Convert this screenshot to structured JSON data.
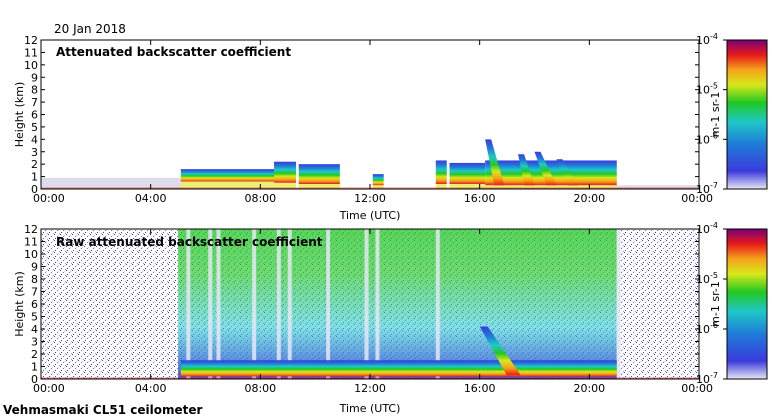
{
  "date": "20 Jan 2018",
  "site": "Vehmasmaki CL51 ceilometer",
  "colors": {
    "colormap": [
      "#e6e6f5",
      "#3b3bdc",
      "#1f7bd8",
      "#1fc8c8",
      "#22c822",
      "#d8e81a",
      "#f5a21a",
      "#e81a1a",
      "#780078"
    ]
  },
  "chart_data": [
    {
      "type": "heatmap",
      "title": "Attenuated backscatter coefficient",
      "xlabel": "Time (UTC)",
      "ylabel": "Height (km)",
      "x_ticks": [
        "00:00",
        "04:00",
        "08:00",
        "12:00",
        "16:00",
        "20:00",
        "00:00"
      ],
      "y_ticks": [
        "0",
        "1",
        "2",
        "3",
        "4",
        "5",
        "6",
        "7",
        "8",
        "9",
        "10",
        "11",
        "12"
      ],
      "xlim_hours": [
        0,
        24
      ],
      "ylim": [
        0,
        12
      ],
      "colorbar": {
        "label": "m-1 sr-1",
        "ticks": [
          {
            "base": "10",
            "exp": "-7"
          },
          {
            "base": "10",
            "exp": "-6"
          },
          {
            "base": "10",
            "exp": "-5"
          },
          {
            "base": "10",
            "exp": "-4"
          }
        ],
        "range_log10": [
          -7,
          -4
        ]
      },
      "cloud_layers": [
        {
          "start_h": 5.1,
          "end_h": 8.5,
          "base_km": 0.6,
          "top_km": 1.6
        },
        {
          "start_h": 8.5,
          "end_h": 9.3,
          "base_km": 0.5,
          "top_km": 2.2
        },
        {
          "start_h": 9.4,
          "end_h": 10.9,
          "base_km": 0.4,
          "top_km": 2.0
        },
        {
          "start_h": 12.1,
          "end_h": 12.5,
          "base_km": 0.3,
          "top_km": 1.2
        },
        {
          "start_h": 14.4,
          "end_h": 14.8,
          "base_km": 0.4,
          "top_km": 2.3
        },
        {
          "start_h": 14.9,
          "end_h": 16.2,
          "base_km": 0.4,
          "top_km": 2.1
        },
        {
          "start_h": 16.2,
          "end_h": 21.0,
          "base_km": 0.3,
          "top_km": 2.3
        }
      ],
      "precipitation_streaks": [
        {
          "start_h": 16.2,
          "end_h": 16.9,
          "top_km": 4.0
        },
        {
          "start_h": 17.4,
          "end_h": 18.0,
          "top_km": 2.8
        },
        {
          "start_h": 18.0,
          "end_h": 18.8,
          "top_km": 3.0
        },
        {
          "start_h": 18.8,
          "end_h": 19.6,
          "top_km": 2.4
        }
      ]
    },
    {
      "type": "heatmap",
      "title": "Raw attenuated backscatter coefficient",
      "xlabel": "Time (UTC)",
      "ylabel": "Height (km)",
      "x_ticks": [
        "00:00",
        "04:00",
        "08:00",
        "12:00",
        "16:00",
        "20:00",
        "00:00"
      ],
      "y_ticks": [
        "0",
        "1",
        "2",
        "3",
        "4",
        "5",
        "6",
        "7",
        "8",
        "9",
        "10",
        "11",
        "12"
      ],
      "xlim_hours": [
        0,
        24
      ],
      "ylim": [
        0,
        12
      ],
      "colorbar": {
        "label": "m-1 sr-1",
        "ticks": [
          {
            "base": "10",
            "exp": "-7"
          },
          {
            "base": "10",
            "exp": "-6"
          },
          {
            "base": "10",
            "exp": "-5"
          },
          {
            "base": "10",
            "exp": "-4"
          }
        ],
        "range_log10": [
          -7,
          -4
        ]
      },
      "noisy_daytime_band": {
        "start_h": 5.0,
        "end_h": 21.0
      },
      "precipitation_streak": {
        "start_h": 16.0,
        "end_h": 17.5,
        "top_km": 4.2
      }
    }
  ]
}
